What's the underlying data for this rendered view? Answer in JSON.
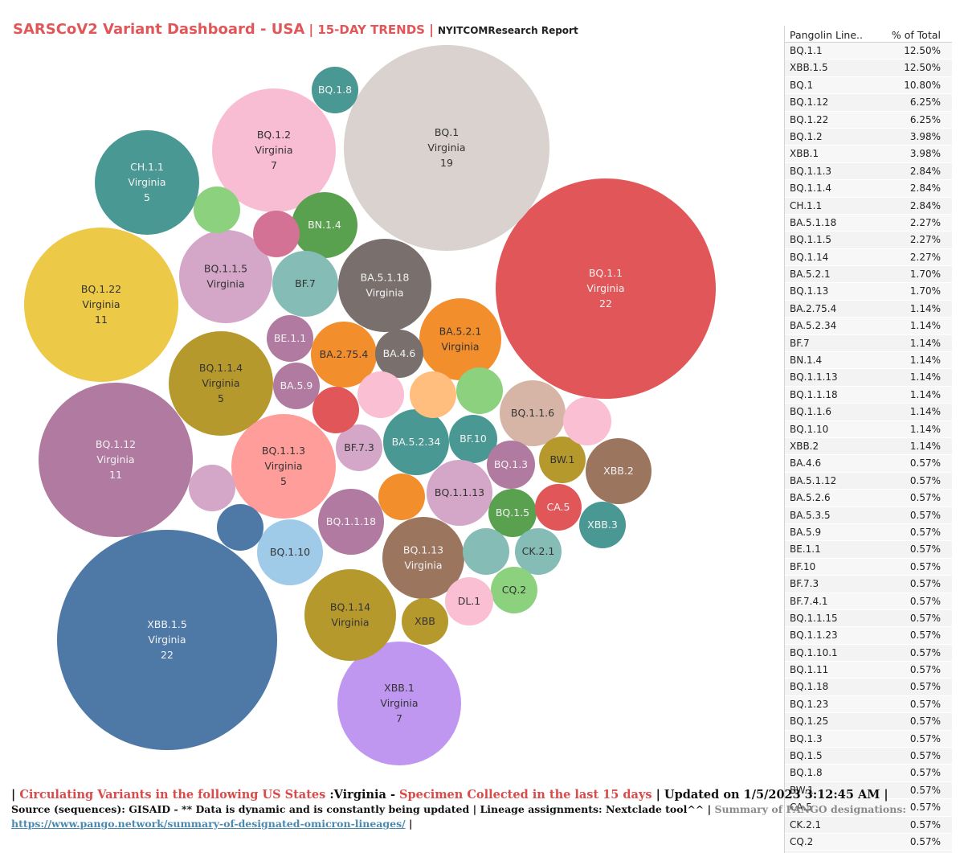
{
  "header": {
    "title": "SARSCoV2 Variant Dashboard - USA",
    "sep": "|",
    "subtitle": "15-DAY TRENDS",
    "report": "NYITCOMResearch Report"
  },
  "chart_data": {
    "type": "bubble",
    "bubbles": [
      {
        "label": "BQ.1.1",
        "state": "Virginia",
        "count": 22,
        "color": "#e15759"
      },
      {
        "label": "XBB.1.5",
        "state": "Virginia",
        "count": 22,
        "color": "#4e79a7"
      },
      {
        "label": "BQ.1",
        "state": "Virginia",
        "count": 19,
        "color": "#d9d2cf"
      },
      {
        "label": "BQ.1.12",
        "state": "Virginia",
        "count": 11,
        "color": "#b07aa1"
      },
      {
        "label": "BQ.1.22",
        "state": "Virginia",
        "count": 11,
        "color": "#edc948"
      },
      {
        "label": "BQ.1.2",
        "state": "Virginia",
        "count": 7,
        "color": "#f9bdd3"
      },
      {
        "label": "XBB.1",
        "state": "Virginia",
        "count": 7,
        "color": "#c097f0"
      },
      {
        "label": "CH.1.1",
        "state": "Virginia",
        "count": 5,
        "color": "#499894"
      },
      {
        "label": "BQ.1.1.4",
        "state": "Virginia",
        "count": 5,
        "color": "#b6992d"
      },
      {
        "label": "BQ.1.1.3",
        "state": "Virginia",
        "count": 5,
        "color": "#ff9d9a"
      },
      {
        "label": "BQ.1.1.5",
        "state": "Virginia",
        "color": "#d4a6c8"
      },
      {
        "label": "BA.5.1.18",
        "state": "Virginia",
        "color": "#79706e"
      },
      {
        "label": "BA.5.2.1",
        "state": "Virginia",
        "color": "#f28e2b"
      },
      {
        "label": "BQ.1.13",
        "state": "Virginia",
        "color": "#9c755f"
      },
      {
        "label": "BQ.1.14",
        "state": "Virginia",
        "color": "#b6992d"
      },
      {
        "label": "BQ.1.8",
        "color": "#499894"
      },
      {
        "label": "BN.1.4",
        "color": "#59a14f"
      },
      {
        "label": "BF.7",
        "color": "#86bcb6"
      },
      {
        "label": "BE.1.1",
        "color": "#b07aa1"
      },
      {
        "label": "BA.2.75.4",
        "color": "#f28e2b"
      },
      {
        "label": "BA.4.6",
        "color": "#79706e"
      },
      {
        "label": "BA.5.9",
        "color": "#b07aa1"
      },
      {
        "label": "BQ.1.1.6",
        "color": "#d7b5a6"
      },
      {
        "label": "BF.7.3",
        "color": "#d4a6c8"
      },
      {
        "label": "BA.5.2.34",
        "color": "#499894"
      },
      {
        "label": "BF.10",
        "color": "#499894"
      },
      {
        "label": "BQ.1.3",
        "color": "#b07aa1"
      },
      {
        "label": "BW.1",
        "color": "#b6992d"
      },
      {
        "label": "XBB.2",
        "color": "#9c755f"
      },
      {
        "label": "BQ.1.1.13",
        "color": "#d4a6c8"
      },
      {
        "label": "BQ.1.5",
        "color": "#59a14f"
      },
      {
        "label": "CA.5",
        "color": "#e15759"
      },
      {
        "label": "XBB.3",
        "color": "#499894"
      },
      {
        "label": "BQ.1.1.18",
        "color": "#b07aa1"
      },
      {
        "label": "BQ.1.10",
        "color": "#a0cbe8"
      },
      {
        "label": "CK.2.1",
        "color": "#86bcb6"
      },
      {
        "label": "CQ.2",
        "color": "#8cd17d"
      },
      {
        "label": "DL.1",
        "color": "#fabfd2"
      },
      {
        "label": "XBB",
        "color": "#b6992d"
      },
      {
        "color": "#8cd17d"
      },
      {
        "color": "#d37295"
      },
      {
        "color": "#e15759"
      },
      {
        "color": "#fabfd2"
      },
      {
        "color": "#ffbe7d"
      },
      {
        "color": "#8cd17d"
      },
      {
        "color": "#fabfd2"
      },
      {
        "color": "#d4a6c8"
      },
      {
        "color": "#4e79a7"
      },
      {
        "color": "#f28e2b"
      },
      {
        "color": "#86bcb6"
      }
    ]
  },
  "table": {
    "col1": "Pangolin Line..",
    "col2": "% of Total",
    "rows": [
      [
        "BQ.1.1",
        "12.50%"
      ],
      [
        "XBB.1.5",
        "12.50%"
      ],
      [
        "BQ.1",
        "10.80%"
      ],
      [
        "BQ.1.12",
        "6.25%"
      ],
      [
        "BQ.1.22",
        "6.25%"
      ],
      [
        "BQ.1.2",
        "3.98%"
      ],
      [
        "XBB.1",
        "3.98%"
      ],
      [
        "BQ.1.1.3",
        "2.84%"
      ],
      [
        "BQ.1.1.4",
        "2.84%"
      ],
      [
        "CH.1.1",
        "2.84%"
      ],
      [
        "BA.5.1.18",
        "2.27%"
      ],
      [
        "BQ.1.1.5",
        "2.27%"
      ],
      [
        "BQ.1.14",
        "2.27%"
      ],
      [
        "BA.5.2.1",
        "1.70%"
      ],
      [
        "BQ.1.13",
        "1.70%"
      ],
      [
        "BA.2.75.4",
        "1.14%"
      ],
      [
        "BA.5.2.34",
        "1.14%"
      ],
      [
        "BF.7",
        "1.14%"
      ],
      [
        "BN.1.4",
        "1.14%"
      ],
      [
        "BQ.1.1.13",
        "1.14%"
      ],
      [
        "BQ.1.1.18",
        "1.14%"
      ],
      [
        "BQ.1.1.6",
        "1.14%"
      ],
      [
        "BQ.1.10",
        "1.14%"
      ],
      [
        "XBB.2",
        "1.14%"
      ],
      [
        "BA.4.6",
        "0.57%"
      ],
      [
        "BA.5.1.12",
        "0.57%"
      ],
      [
        "BA.5.2.6",
        "0.57%"
      ],
      [
        "BA.5.3.5",
        "0.57%"
      ],
      [
        "BA.5.9",
        "0.57%"
      ],
      [
        "BE.1.1",
        "0.57%"
      ],
      [
        "BF.10",
        "0.57%"
      ],
      [
        "BF.7.3",
        "0.57%"
      ],
      [
        "BF.7.4.1",
        "0.57%"
      ],
      [
        "BQ.1.1.15",
        "0.57%"
      ],
      [
        "BQ.1.1.23",
        "0.57%"
      ],
      [
        "BQ.1.10.1",
        "0.57%"
      ],
      [
        "BQ.1.11",
        "0.57%"
      ],
      [
        "BQ.1.18",
        "0.57%"
      ],
      [
        "BQ.1.23",
        "0.57%"
      ],
      [
        "BQ.1.25",
        "0.57%"
      ],
      [
        "BQ.1.3",
        "0.57%"
      ],
      [
        "BQ.1.5",
        "0.57%"
      ],
      [
        "BQ.1.8",
        "0.57%"
      ],
      [
        "BW.1",
        "0.57%"
      ],
      [
        "CA.5",
        "0.57%"
      ],
      [
        "CK.2.1",
        "0.57%"
      ],
      [
        "CQ.2",
        "0.57%"
      ]
    ]
  },
  "footer": {
    "bar_start": "| ",
    "circulating": "Circulating Variants in the following US States",
    "states": " :Virginia - ",
    "specimen": "Specimen Collected in the last 15 days",
    "updated": " | Updated on 1/5/2023 3:12:45 AM |",
    "source": "Source (sequences): GISAID - ** Data is dynamic and is constantly being updated | Lineage assignments: Nextclade tool^^ | ",
    "summary": "Summary of PANGO designations:",
    "link": "https://www.pango.network/summary-of-designated-omicron-lineages/",
    "end": " |"
  }
}
